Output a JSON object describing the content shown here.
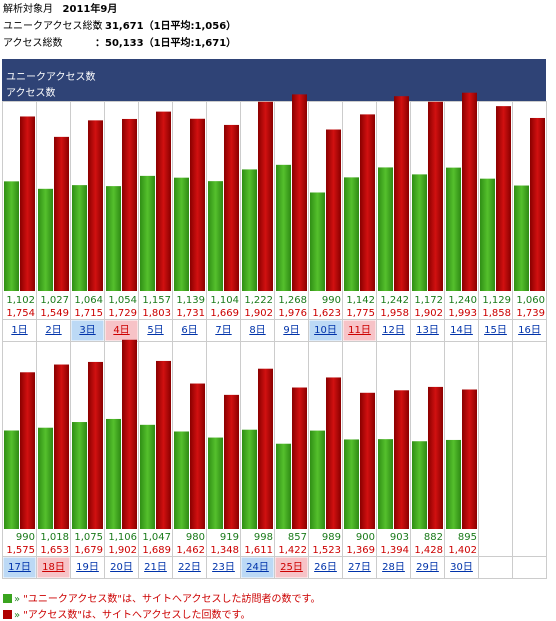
{
  "header": {
    "month_label": "解析対象月",
    "month_value": "2011年9月",
    "unique_label": "ユニークアクセス総数",
    "unique_value": "：31,671（1日平均:1,056）",
    "access_label": "アクセス総数",
    "access_value": "：50,133（1日平均:1,671）"
  },
  "legend": {
    "unique": "ユニークアクセス数",
    "access": "アクセス数"
  },
  "footer": {
    "note_unique_prefix": "» ",
    "note_unique": "\"ユニークアクセス数\"は、サイトへアクセスした訪問者の数です。",
    "note_access_prefix": "» ",
    "note_access": "\"アクセス数\"は、サイトへアクセスした回数です。"
  },
  "colors": {
    "unique": "#3aa41f",
    "access": "#b00000",
    "header_bg": "#2f4376",
    "saturday_bg": "#bcd9f5",
    "sunday_bg": "#f7c3c7",
    "day_link": "#0033aa",
    "sunday_link": "#cc0000"
  },
  "chart_data": {
    "type": "bar",
    "series": [
      {
        "name": "ユニークアクセス数",
        "values": [
          1102,
          1027,
          1064,
          1054,
          1157,
          1139,
          1104,
          1222,
          1268,
          990,
          1142,
          1242,
          1172,
          1240,
          1129,
          1060,
          990,
          1018,
          1075,
          1106,
          1047,
          980,
          919,
          998,
          857,
          989,
          900,
          903,
          882,
          895
        ]
      },
      {
        "name": "アクセス数",
        "values": [
          1754,
          1549,
          1715,
          1729,
          1803,
          1731,
          1669,
          1902,
          1976,
          1623,
          1775,
          1958,
          1902,
          1993,
          1858,
          1739,
          1575,
          1653,
          1679,
          1902,
          1689,
          1462,
          1348,
          1611,
          1422,
          1523,
          1369,
          1394,
          1428,
          1402
        ]
      }
    ],
    "unique_labels": [
      "1,102",
      "1,027",
      "1,064",
      "1,054",
      "1,157",
      "1,139",
      "1,104",
      "1,222",
      "1,268",
      "990",
      "1,142",
      "1,242",
      "1,172",
      "1,240",
      "1,129",
      "1,060",
      "990",
      "1,018",
      "1,075",
      "1,106",
      "1,047",
      "980",
      "919",
      "998",
      "857",
      "989",
      "900",
      "903",
      "882",
      "895"
    ],
    "access_labels": [
      "1,754",
      "1,549",
      "1,715",
      "1,729",
      "1,803",
      "1,731",
      "1,669",
      "1,902",
      "1,976",
      "1,623",
      "1,775",
      "1,958",
      "1,902",
      "1,993",
      "1,858",
      "1,739",
      "1,575",
      "1,653",
      "1,679",
      "1,902",
      "1,689",
      "1,462",
      "1,348",
      "1,611",
      "1,422",
      "1,523",
      "1,369",
      "1,394",
      "1,428",
      "1,402"
    ],
    "categories": [
      "1日",
      "2日",
      "3日",
      "4日",
      "5日",
      "6日",
      "7日",
      "8日",
      "9日",
      "10日",
      "11日",
      "12日",
      "13日",
      "14日",
      "15日",
      "16日",
      "17日",
      "18日",
      "19日",
      "20日",
      "21日",
      "22日",
      "23日",
      "24日",
      "25日",
      "26日",
      "27日",
      "28日",
      "29日",
      "30日"
    ],
    "weekday_type": [
      "",
      "",
      "sat",
      "sun",
      "",
      "",
      "",
      "",
      "",
      "sat",
      "sun",
      "",
      "",
      "",
      "",
      "",
      "sat",
      "sun",
      "",
      "",
      "",
      "",
      "",
      "sat",
      "sun",
      "",
      "",
      "",
      "",
      ""
    ],
    "ylim": [
      0,
      2000
    ]
  }
}
